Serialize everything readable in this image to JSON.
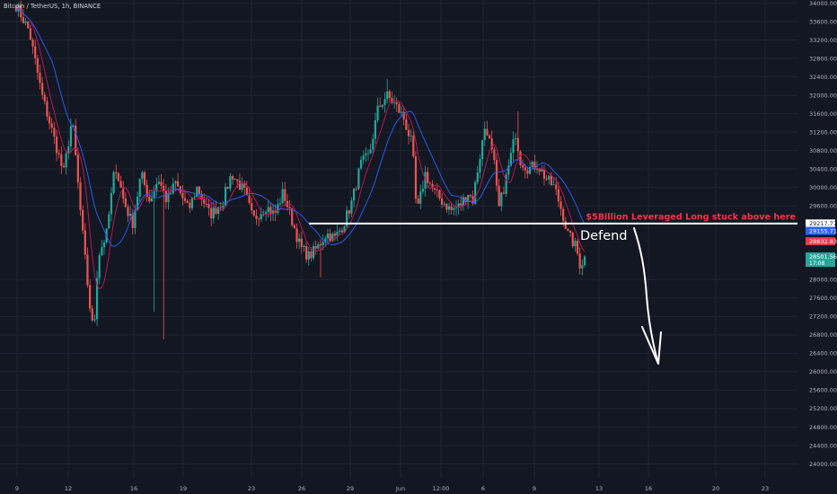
{
  "symbol_title": "Bitcoin / TetherUS, 1h, BINANCE",
  "colors": {
    "background": "#131722",
    "grid": "#1f2433",
    "up": "#26a69a",
    "down": "#ef5350",
    "ma_fast": "#c2185b",
    "ma_slow": "#2962ff",
    "level_line": "#ffffff",
    "annotation": "#f23645"
  },
  "price_scale": {
    "ticks": [
      "34000.00",
      "33600.00",
      "33200.00",
      "32800.00",
      "32400.00",
      "32000.00",
      "31600.00",
      "31200.00",
      "30800.00",
      "30400.00",
      "30000.00",
      "29600.00",
      "28000.00",
      "27600.00",
      "27200.00",
      "26800.00",
      "26400.00",
      "26000.00",
      "25600.00",
      "25200.00",
      "24800.00",
      "24400.00",
      "24000.00"
    ],
    "labels": [
      {
        "id": "level-29217",
        "text": "29217.77",
        "price": 29217.77,
        "bg": "#ffffff",
        "fg": "#131722"
      },
      {
        "id": "level-29155",
        "text": "29155.71",
        "price": 29155.71,
        "bg": "#2962ff",
        "fg": "#ffffff"
      },
      {
        "id": "level-28832",
        "text": "28832.83",
        "price": 28832.83,
        "bg": "#f23645",
        "fg": "#ffffff"
      },
      {
        "id": "level-last",
        "text": "28501.56",
        "price": 28501.56,
        "bg": "#26a69a",
        "fg": "#ffffff",
        "sub": "17:08"
      }
    ]
  },
  "time_scale": {
    "ticks": [
      "9",
      "12",
      "16",
      "19",
      "23",
      "26",
      "29",
      "Jun",
      "12:00",
      "6",
      "9",
      "13",
      "16",
      "20",
      "23"
    ]
  },
  "annotations": {
    "headline": "$5Billion Leveraged Long stuck above here",
    "defend": "Defend",
    "level_price": 29217.77
  },
  "chart_data": {
    "type": "candlestick",
    "symbol": "Bitcoin / TetherUS",
    "timeframe": "1h",
    "exchange": "BINANCE",
    "y_range": [
      23900,
      34100
    ],
    "x_ticks": [
      "9",
      "12",
      "16",
      "19",
      "23",
      "26",
      "29",
      "Jun",
      "12:00",
      "6",
      "9",
      "13",
      "16",
      "20",
      "23"
    ],
    "close_path": [
      {
        "t": 0,
        "p": 33950
      },
      {
        "t": 3,
        "p": 33400
      },
      {
        "t": 6,
        "p": 32000
      },
      {
        "t": 9,
        "p": 31000
      },
      {
        "t": 11,
        "p": 30300
      },
      {
        "t": 13,
        "p": 31500
      },
      {
        "t": 15,
        "p": 29400
      },
      {
        "t": 17,
        "p": 27500
      },
      {
        "t": 18,
        "p": 26800
      },
      {
        "t": 19,
        "p": 28500
      },
      {
        "t": 21,
        "p": 29000
      },
      {
        "t": 23,
        "p": 30500
      },
      {
        "t": 25,
        "p": 29700
      },
      {
        "t": 27,
        "p": 29200
      },
      {
        "t": 29,
        "p": 30300
      },
      {
        "t": 31,
        "p": 29700
      },
      {
        "t": 33,
        "p": 30200
      },
      {
        "t": 35,
        "p": 29700
      },
      {
        "t": 37,
        "p": 30100
      },
      {
        "t": 40,
        "p": 29500
      },
      {
        "t": 42,
        "p": 30000
      },
      {
        "t": 45,
        "p": 29400
      },
      {
        "t": 48,
        "p": 29700
      },
      {
        "t": 50,
        "p": 30300
      },
      {
        "t": 53,
        "p": 29900
      },
      {
        "t": 55,
        "p": 29300
      },
      {
        "t": 58,
        "p": 29600
      },
      {
        "t": 60,
        "p": 29400
      },
      {
        "t": 62,
        "p": 29900
      },
      {
        "t": 64,
        "p": 29300
      },
      {
        "t": 66,
        "p": 28700
      },
      {
        "t": 68,
        "p": 28500
      },
      {
        "t": 70,
        "p": 28700
      },
      {
        "t": 72,
        "p": 29000
      },
      {
        "t": 74,
        "p": 28900
      },
      {
        "t": 76,
        "p": 29200
      },
      {
        "t": 78,
        "p": 29700
      },
      {
        "t": 80,
        "p": 30500
      },
      {
        "t": 82,
        "p": 30700
      },
      {
        "t": 84,
        "p": 31700
      },
      {
        "t": 86,
        "p": 32000
      },
      {
        "t": 88,
        "p": 31800
      },
      {
        "t": 90,
        "p": 31500
      },
      {
        "t": 92,
        "p": 30900
      },
      {
        "t": 93,
        "p": 29400
      },
      {
        "t": 95,
        "p": 30300
      },
      {
        "t": 97,
        "p": 29900
      },
      {
        "t": 99,
        "p": 29700
      },
      {
        "t": 101,
        "p": 29500
      },
      {
        "t": 103,
        "p": 29600
      },
      {
        "t": 105,
        "p": 29900
      },
      {
        "t": 106,
        "p": 29700
      },
      {
        "t": 107,
        "p": 30300
      },
      {
        "t": 109,
        "p": 31400
      },
      {
        "t": 111,
        "p": 30500
      },
      {
        "t": 112,
        "p": 29500
      },
      {
        "t": 114,
        "p": 30300
      },
      {
        "t": 116,
        "p": 31200
      },
      {
        "t": 117,
        "p": 30600
      },
      {
        "t": 119,
        "p": 30400
      },
      {
        "t": 121,
        "p": 30500
      },
      {
        "t": 123,
        "p": 30200
      },
      {
        "t": 125,
        "p": 30000
      },
      {
        "t": 127,
        "p": 29400
      },
      {
        "t": 128,
        "p": 29000
      },
      {
        "t": 130,
        "p": 28700
      },
      {
        "t": 131,
        "p": 28300
      },
      {
        "t": 132,
        "p": 28500
      }
    ]
  }
}
